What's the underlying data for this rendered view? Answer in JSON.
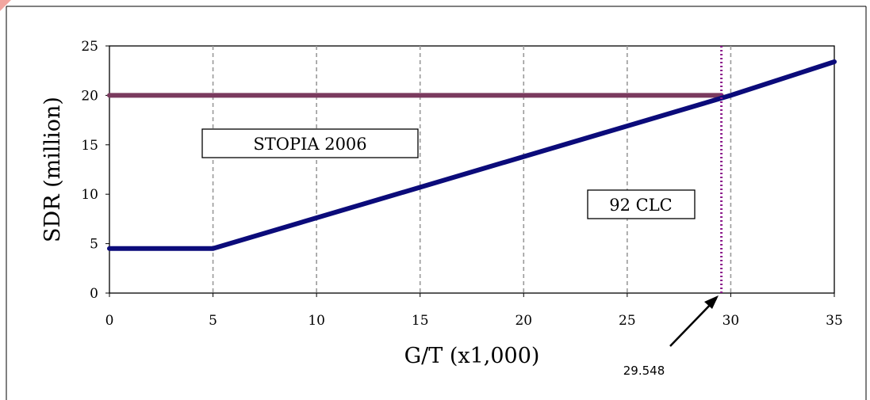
{
  "chart_data": {
    "type": "line",
    "title": "",
    "xlabel": "G/T (x1,000)",
    "ylabel": "SDR (million)",
    "xlim": [
      0,
      35
    ],
    "ylim": [
      0,
      25
    ],
    "x_ticks": [
      0,
      5,
      10,
      15,
      20,
      25,
      30,
      35
    ],
    "y_ticks": [
      0,
      5,
      10,
      15,
      20,
      25
    ],
    "vertical_gridlines": "dashed",
    "series": [
      {
        "color": "#7a3a5e",
        "x": [
          0,
          29.548
        ],
        "y": [
          20,
          20
        ]
      },
      {
        "color": "#0b0b7a",
        "x": [
          0,
          5,
          30,
          35
        ],
        "y": [
          4.51,
          4.51,
          20,
          23.4
        ]
      }
    ],
    "marker_line": {
      "x": 29.548,
      "color": "#8b1a8b",
      "style": "dotted"
    },
    "annotations": {
      "stopia": "STOPIA 2006",
      "clc": "92 CLC",
      "arrow_value": "29.548"
    }
  }
}
